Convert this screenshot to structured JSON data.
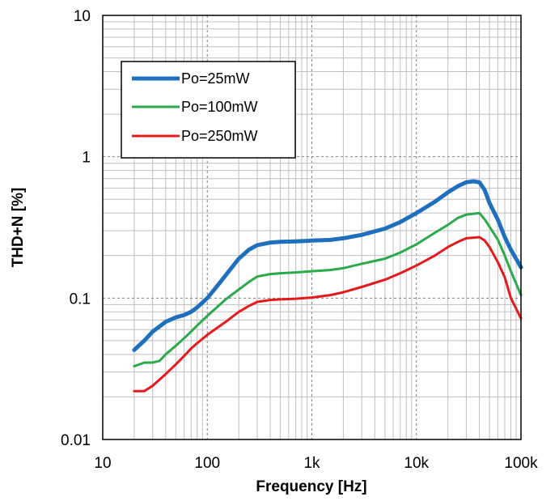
{
  "chart_data": {
    "type": "line",
    "xlabel": "Frequency  [Hz]",
    "ylabel": "THD+N  [%]",
    "x_scale": "log",
    "y_scale": "log",
    "xlim": [
      10,
      100000
    ],
    "ylim": [
      0.01,
      10
    ],
    "x_ticks": [
      10,
      100,
      1000,
      10000,
      100000
    ],
    "x_tick_labels": [
      "10",
      "100",
      "1k",
      "10k",
      "100k"
    ],
    "y_ticks": [
      0.01,
      0.1,
      1,
      10
    ],
    "y_tick_labels": [
      "0.01",
      "0.1",
      "1",
      "10"
    ],
    "grid": "on (major dashed, minor solid)",
    "legend_placement": "top-left",
    "series": [
      {
        "name": "Po=25mW",
        "color": "#1f6fbf",
        "points": [
          [
            20,
            0.043
          ],
          [
            25,
            0.05
          ],
          [
            30,
            0.058
          ],
          [
            40,
            0.068
          ],
          [
            50,
            0.073
          ],
          [
            60,
            0.076
          ],
          [
            70,
            0.08
          ],
          [
            80,
            0.086
          ],
          [
            100,
            0.1
          ],
          [
            120,
            0.118
          ],
          [
            150,
            0.145
          ],
          [
            200,
            0.19
          ],
          [
            250,
            0.22
          ],
          [
            300,
            0.237
          ],
          [
            400,
            0.247
          ],
          [
            500,
            0.25
          ],
          [
            700,
            0.252
          ],
          [
            1000,
            0.255
          ],
          [
            1500,
            0.258
          ],
          [
            2000,
            0.265
          ],
          [
            3000,
            0.28
          ],
          [
            5000,
            0.31
          ],
          [
            7000,
            0.345
          ],
          [
            10000,
            0.4
          ],
          [
            15000,
            0.48
          ],
          [
            20000,
            0.56
          ],
          [
            25000,
            0.62
          ],
          [
            30000,
            0.66
          ],
          [
            35000,
            0.67
          ],
          [
            40000,
            0.66
          ],
          [
            45000,
            0.58
          ],
          [
            50000,
            0.47
          ],
          [
            60000,
            0.36
          ],
          [
            70000,
            0.27
          ],
          [
            80000,
            0.22
          ],
          [
            100000,
            0.165
          ]
        ]
      },
      {
        "name": "Po=100mW",
        "color": "#2aaa4a",
        "points": [
          [
            20,
            0.033
          ],
          [
            25,
            0.035
          ],
          [
            30,
            0.035
          ],
          [
            35,
            0.036
          ],
          [
            40,
            0.04
          ],
          [
            50,
            0.046
          ],
          [
            60,
            0.052
          ],
          [
            70,
            0.058
          ],
          [
            80,
            0.064
          ],
          [
            100,
            0.075
          ],
          [
            150,
            0.098
          ],
          [
            200,
            0.115
          ],
          [
            250,
            0.13
          ],
          [
            300,
            0.142
          ],
          [
            400,
            0.148
          ],
          [
            500,
            0.15
          ],
          [
            700,
            0.152
          ],
          [
            1000,
            0.155
          ],
          [
            1500,
            0.158
          ],
          [
            2000,
            0.163
          ],
          [
            3000,
            0.175
          ],
          [
            5000,
            0.19
          ],
          [
            7000,
            0.21
          ],
          [
            10000,
            0.24
          ],
          [
            15000,
            0.29
          ],
          [
            20000,
            0.33
          ],
          [
            25000,
            0.37
          ],
          [
            30000,
            0.39
          ],
          [
            40000,
            0.4
          ],
          [
            45000,
            0.36
          ],
          [
            50000,
            0.32
          ],
          [
            60000,
            0.26
          ],
          [
            70000,
            0.2
          ],
          [
            80000,
            0.155
          ],
          [
            100000,
            0.105
          ]
        ]
      },
      {
        "name": "Po=250mW",
        "color": "#e41a1c",
        "points": [
          [
            20,
            0.022
          ],
          [
            25,
            0.022
          ],
          [
            30,
            0.024
          ],
          [
            40,
            0.029
          ],
          [
            50,
            0.034
          ],
          [
            60,
            0.039
          ],
          [
            70,
            0.044
          ],
          [
            80,
            0.048
          ],
          [
            100,
            0.055
          ],
          [
            150,
            0.068
          ],
          [
            200,
            0.08
          ],
          [
            250,
            0.088
          ],
          [
            300,
            0.094
          ],
          [
            400,
            0.097
          ],
          [
            500,
            0.098
          ],
          [
            700,
            0.099
          ],
          [
            1000,
            0.101
          ],
          [
            1500,
            0.105
          ],
          [
            2000,
            0.11
          ],
          [
            3000,
            0.12
          ],
          [
            5000,
            0.135
          ],
          [
            7000,
            0.15
          ],
          [
            10000,
            0.17
          ],
          [
            15000,
            0.2
          ],
          [
            20000,
            0.23
          ],
          [
            25000,
            0.25
          ],
          [
            30000,
            0.265
          ],
          [
            40000,
            0.27
          ],
          [
            45000,
            0.255
          ],
          [
            50000,
            0.23
          ],
          [
            60000,
            0.18
          ],
          [
            70000,
            0.14
          ],
          [
            80000,
            0.1
          ],
          [
            100000,
            0.072
          ]
        ]
      }
    ]
  }
}
